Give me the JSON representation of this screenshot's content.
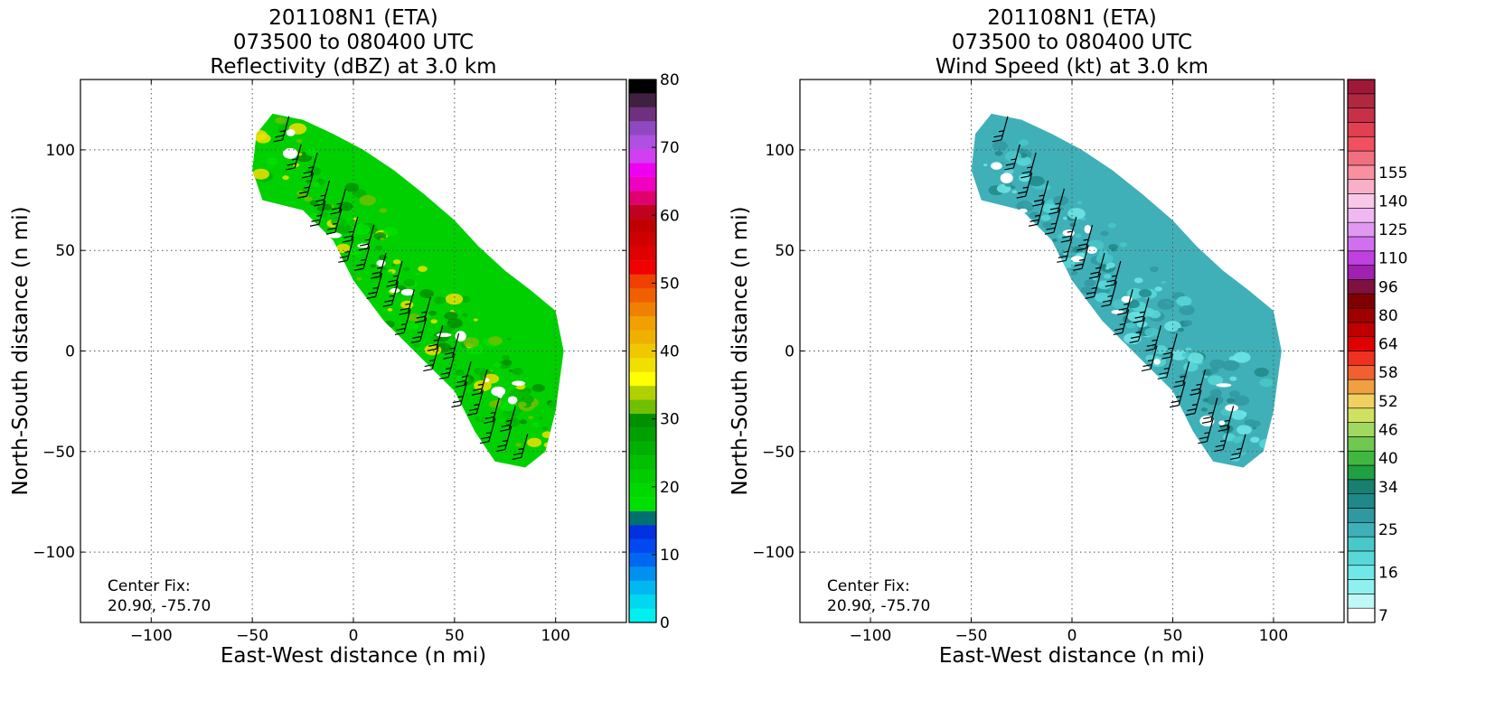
{
  "chart_data": [
    {
      "type": "heatmap",
      "title_lines": [
        "201108N1 (ETA)",
        "073500 to 080400 UTC",
        "Reflectivity (dBZ) at 3.0 km"
      ],
      "xlabel": "East-West distance (n mi)",
      "ylabel": "North-South distance (n mi)",
      "xlim": [
        -135,
        135
      ],
      "ylim": [
        -135,
        135
      ],
      "xticks": [
        -100,
        -50,
        0,
        50,
        100
      ],
      "yticks": [
        -100,
        -50,
        0,
        50,
        100
      ],
      "xtick_labels": [
        "−100",
        "−50",
        "0",
        "50",
        "100"
      ],
      "ytick_labels": [
        "−100",
        "−50",
        "0",
        "50",
        "100"
      ],
      "grid": true,
      "annotation_lines": [
        "Center Fix:",
        "20.90, -75.70"
      ],
      "colorbar": {
        "min": 0,
        "max": 80,
        "tick_values": [
          0,
          10,
          20,
          30,
          40,
          50,
          60,
          70,
          80
        ],
        "tick_labels": [
          "0",
          "10",
          "20",
          "30",
          "40",
          "50",
          "60",
          "70",
          "80"
        ],
        "colors": [
          "#00f0f0",
          "#00d8f0",
          "#00b8f0",
          "#0090f0",
          "#0068f0",
          "#0048f0",
          "#0030e0",
          "#007070",
          "#00e000",
          "#00d800",
          "#00cc00",
          "#00c000",
          "#00b000",
          "#00a000",
          "#009000",
          "#70c000",
          "#b0d000",
          "#ffff00",
          "#f0e000",
          "#f0c800",
          "#f0b000",
          "#f0a000",
          "#f08000",
          "#f06000",
          "#f04000",
          "#f00000",
          "#e00000",
          "#d00000",
          "#c00000",
          "#c00020",
          "#e00070",
          "#f000c0",
          "#f000f0",
          "#d040f0",
          "#b050e0",
          "#9048c0",
          "#703080",
          "#402040",
          "#000000"
        ]
      }
    },
    {
      "type": "heatmap",
      "title_lines": [
        "201108N1 (ETA)",
        "073500 to 080400 UTC",
        "Wind Speed (kt) at 3.0 km"
      ],
      "xlabel": "East-West distance (n mi)",
      "ylabel": "North-South distance (n mi)",
      "xlim": [
        -135,
        135
      ],
      "ylim": [
        -135,
        135
      ],
      "xticks": [
        -100,
        -50,
        0,
        50,
        100
      ],
      "yticks": [
        -100,
        -50,
        0,
        50,
        100
      ],
      "xtick_labels": [
        "−100",
        "−50",
        "0",
        "50",
        "100"
      ],
      "ytick_labels": [
        "−100",
        "−50",
        "0",
        "50",
        "100"
      ],
      "grid": true,
      "annotation_lines": [
        "Center Fix:",
        "20.90, -75.70"
      ],
      "colorbar": {
        "tick_labels_bottom_to_top": [
          "7",
          "16",
          "25",
          "34",
          "40",
          "46",
          "52",
          "58",
          "64",
          "80",
          "96",
          "110",
          "125",
          "140",
          "155"
        ],
        "tick_bin_index": [
          0,
          3,
          6,
          9,
          11,
          13,
          15,
          17,
          19,
          21,
          23,
          25,
          27,
          29,
          31
        ],
        "colors": [
          "#ffffff",
          "#c0f8f8",
          "#90f0f0",
          "#70e8e8",
          "#58d8d8",
          "#48c8c8",
          "#40b0b8",
          "#3098a0",
          "#208888",
          "#188070",
          "#20a040",
          "#40b840",
          "#70c850",
          "#a0d860",
          "#d0e060",
          "#f0d060",
          "#f0a040",
          "#f06030",
          "#f03020",
          "#e00000",
          "#c00000",
          "#a00000",
          "#800000",
          "#801040",
          "#a020b0",
          "#c040e0",
          "#d070f0",
          "#e098f0",
          "#f0b8f0",
          "#f8c8e8",
          "#f8b0c8",
          "#f890a0",
          "#f07080",
          "#f05060",
          "#e04050",
          "#c83048",
          "#b02840",
          "#a01838"
        ]
      }
    }
  ]
}
